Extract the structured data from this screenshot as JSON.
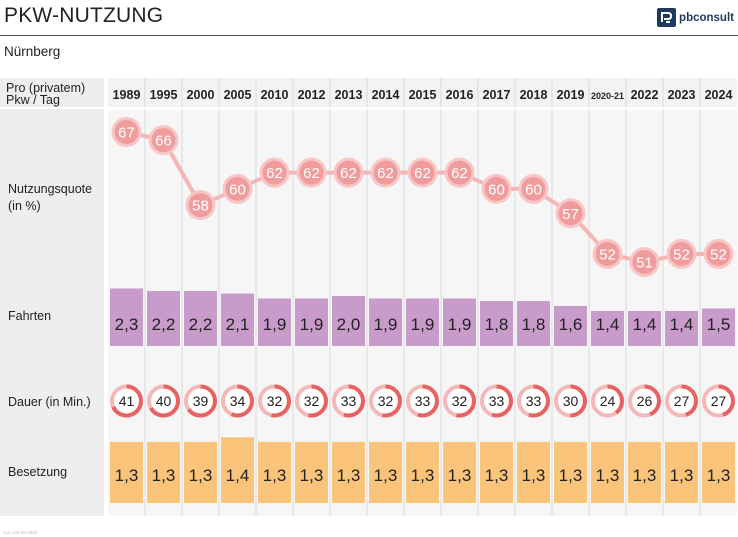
{
  "header": {
    "title": "PKW-NUTZUNG",
    "subtitle": "Nürnberg",
    "logo": "pbconsult",
    "code": "411-130-20-1902"
  },
  "colors": {
    "quote_line": "#f5b5b5",
    "quote_fill": "#f09c9c",
    "quote_ring": "#f7c7c7",
    "fahrten_bar": "#c99bcb",
    "dauer_ring": "#e86262",
    "besetzung_bar": "#fbc47b",
    "label_col": "#eeeeee",
    "year_col": "#f3f3f3"
  },
  "chart_data": {
    "type": "table",
    "corner_label": "Pro (privatem) Pkw / Tag",
    "years": [
      "1989",
      "1995",
      "2000",
      "2005",
      "2010",
      "2012",
      "2013",
      "2014",
      "2015",
      "2016",
      "2017",
      "2018",
      "2019",
      "2020-21",
      "2022",
      "2023",
      "2024"
    ],
    "rows": [
      {
        "key": "nutzungsquote",
        "label": "Nutzungsquote (in %)",
        "chart": "line",
        "values": [
          67,
          66,
          58,
          60,
          62,
          62,
          62,
          62,
          62,
          62,
          60,
          60,
          57,
          52,
          51,
          52,
          52
        ]
      },
      {
        "key": "fahrten",
        "label": "Fahrten",
        "chart": "bar",
        "values": [
          2.3,
          2.2,
          2.2,
          2.1,
          1.9,
          1.9,
          2.0,
          1.9,
          1.9,
          1.9,
          1.8,
          1.8,
          1.6,
          1.4,
          1.4,
          1.4,
          1.5
        ],
        "labels": [
          "2,3",
          "2,2",
          "2,2",
          "2,1",
          "1,9",
          "1,9",
          "2,0",
          "1,9",
          "1,9",
          "1,9",
          "1,8",
          "1,8",
          "1,6",
          "1,4",
          "1,4",
          "1,4",
          "1,5"
        ]
      },
      {
        "key": "dauer",
        "label": "Dauer (in Min.)",
        "chart": "ring",
        "values": [
          41,
          40,
          39,
          34,
          32,
          32,
          33,
          32,
          33,
          32,
          33,
          33,
          30,
          24,
          26,
          27,
          27
        ]
      },
      {
        "key": "besetzung",
        "label": "Besetzung",
        "chart": "bar",
        "values": [
          1.3,
          1.3,
          1.3,
          1.4,
          1.3,
          1.3,
          1.3,
          1.3,
          1.3,
          1.3,
          1.3,
          1.3,
          1.3,
          1.3,
          1.3,
          1.3,
          1.3
        ],
        "labels": [
          "1,3",
          "1,3",
          "1,3",
          "1,4",
          "1,3",
          "1,3",
          "1,3",
          "1,3",
          "1,3",
          "1,3",
          "1,3",
          "1,3",
          "1,3",
          "1,3",
          "1,3",
          "1,3",
          "1,3"
        ]
      }
    ]
  }
}
